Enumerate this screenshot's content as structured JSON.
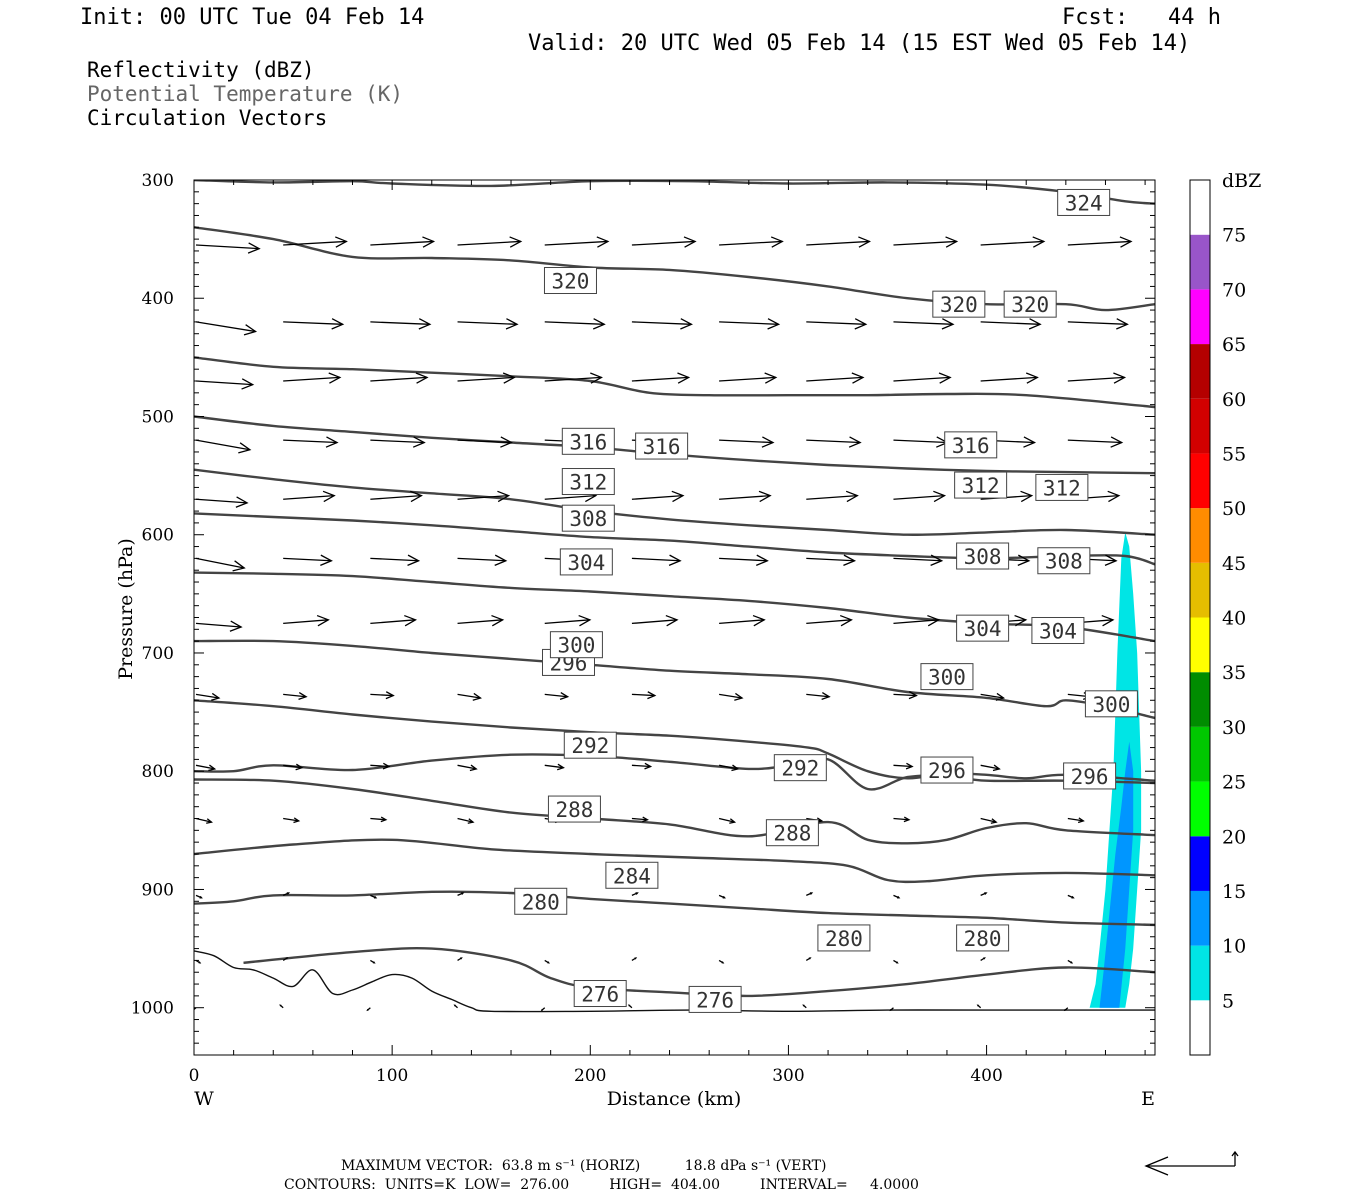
{
  "header": {
    "init": "Init: 00 UTC Tue 04 Feb 14",
    "fcst": "Fcst:   44 h",
    "valid": "Valid: 20 UTC Wed 05 Feb 14 (15 EST Wed 05 Feb 14)"
  },
  "legend": {
    "items": [
      {
        "label": "Reflectivity (dBZ)",
        "color": "#000000"
      },
      {
        "label": "Potential Temperature (K)",
        "color": "#666666"
      },
      {
        "label": "Circulation Vectors",
        "color": "#000000"
      }
    ]
  },
  "footer": {
    "max_vector": "MAXIMUM VECTOR:  63.8 m s⁻¹ (HORIZ)          18.8 dPa s⁻¹ (VERT)",
    "contours": "CONTOURS:  UNITS=K  LOW=  276.00         HIGH=  404.00         INTERVAL=     4.0000"
  },
  "chart_data": {
    "type": "cross-section",
    "xlabel": "Distance (km)",
    "ylabel": "Pressure (hPa)",
    "xlim": [
      0,
      485
    ],
    "ylim": [
      1040,
      300
    ],
    "x_ticks": [
      0,
      100,
      200,
      300,
      400
    ],
    "y_ticks": [
      300,
      400,
      500,
      600,
      700,
      800,
      900,
      1000
    ],
    "x_end_labels": {
      "left": "W",
      "right": "E"
    },
    "colorbar": {
      "title": "dBZ",
      "levels": [
        5,
        10,
        15,
        20,
        25,
        30,
        35,
        40,
        45,
        50,
        55,
        60,
        65,
        70,
        75
      ],
      "colors": [
        "#ffffff",
        "#00e5e5",
        "#0096ff",
        "#0000ff",
        "#00ff00",
        "#00c800",
        "#008c00",
        "#ffff00",
        "#e5be00",
        "#ff8c00",
        "#ff0000",
        "#d20000",
        "#b40000",
        "#ff00ff",
        "#9955c9",
        "#ffffff"
      ]
    },
    "theta_contours": [
      {
        "value": 276,
        "points": [
          [
            0,
            952
          ],
          [
            10,
            956
          ],
          [
            20,
            966
          ],
          [
            30,
            968
          ],
          [
            40,
            975
          ],
          [
            50,
            982
          ],
          [
            60,
            968
          ],
          [
            70,
            988
          ],
          [
            80,
            985
          ],
          [
            90,
            978
          ],
          [
            100,
            972
          ],
          [
            110,
            975
          ],
          [
            120,
            986
          ],
          [
            130,
            993
          ],
          [
            140,
            1000
          ],
          [
            150,
            1003
          ],
          [
            200,
            1003
          ],
          [
            250,
            1002
          ],
          [
            300,
            1003
          ],
          [
            350,
            1002
          ],
          [
            400,
            1002
          ],
          [
            485,
            1002
          ]
        ],
        "labels": [
          [
            205,
            988
          ],
          [
            263,
            993
          ]
        ]
      },
      {
        "value": 280,
        "points": [
          [
            0,
            912
          ],
          [
            20,
            910
          ],
          [
            40,
            905
          ],
          [
            80,
            905
          ],
          [
            120,
            902
          ],
          [
            160,
            903
          ],
          [
            200,
            908
          ],
          [
            240,
            912
          ],
          [
            280,
            916
          ],
          [
            320,
            920
          ],
          [
            360,
            922
          ],
          [
            400,
            924
          ],
          [
            440,
            928
          ],
          [
            485,
            930
          ]
        ],
        "labels": [
          [
            175,
            910
          ],
          [
            328,
            941
          ],
          [
            398,
            941
          ]
        ]
      },
      {
        "value": 280,
        "points": [
          [
            25,
            962
          ],
          [
            80,
            953
          ],
          [
            120,
            950
          ],
          [
            160,
            960
          ],
          [
            180,
            975
          ],
          [
            200,
            983
          ],
          [
            240,
            987
          ],
          [
            280,
            990
          ],
          [
            320,
            986
          ],
          [
            360,
            980
          ],
          [
            400,
            972
          ],
          [
            440,
            966
          ],
          [
            485,
            970
          ]
        ],
        "labels": []
      },
      {
        "value": 284,
        "points": [
          [
            0,
            870
          ],
          [
            50,
            862
          ],
          [
            100,
            858
          ],
          [
            150,
            866
          ],
          [
            200,
            870
          ],
          [
            250,
            873
          ],
          [
            300,
            876
          ],
          [
            330,
            880
          ],
          [
            350,
            892
          ],
          [
            370,
            893
          ],
          [
            400,
            888
          ],
          [
            440,
            886
          ],
          [
            485,
            888
          ]
        ],
        "labels": [
          [
            221,
            888
          ]
        ]
      },
      {
        "value": 288,
        "points": [
          [
            0,
            807
          ],
          [
            40,
            808
          ],
          [
            80,
            815
          ],
          [
            120,
            825
          ],
          [
            160,
            835
          ],
          [
            200,
            840
          ],
          [
            240,
            845
          ],
          [
            280,
            855
          ],
          [
            320,
            843
          ],
          [
            340,
            858
          ],
          [
            360,
            861
          ],
          [
            380,
            858
          ],
          [
            400,
            848
          ],
          [
            420,
            844
          ],
          [
            440,
            850
          ],
          [
            485,
            854
          ]
        ],
        "labels": [
          [
            192,
            832
          ],
          [
            302,
            852
          ]
        ]
      },
      {
        "value": 292,
        "points": [
          [
            0,
            800
          ],
          [
            20,
            800
          ],
          [
            40,
            795
          ],
          [
            80,
            799
          ],
          [
            120,
            791
          ],
          [
            160,
            786
          ],
          [
            200,
            787
          ],
          [
            240,
            792
          ],
          [
            280,
            798
          ],
          [
            300,
            795
          ],
          [
            320,
            790
          ],
          [
            340,
            815
          ],
          [
            360,
            805
          ],
          [
            380,
            804
          ],
          [
            400,
            808
          ],
          [
            440,
            808
          ],
          [
            485,
            810
          ]
        ],
        "labels": [
          [
            200,
            778
          ],
          [
            306,
            797
          ]
        ]
      },
      {
        "value": 296,
        "points": [
          [
            0,
            740
          ],
          [
            40,
            745
          ],
          [
            80,
            752
          ],
          [
            120,
            758
          ],
          [
            160,
            763
          ],
          [
            200,
            767
          ],
          [
            240,
            770
          ],
          [
            280,
            775
          ],
          [
            310,
            780
          ],
          [
            320,
            785
          ],
          [
            340,
            800
          ],
          [
            360,
            806
          ],
          [
            380,
            802
          ],
          [
            400,
            803
          ],
          [
            420,
            806
          ],
          [
            440,
            803
          ],
          [
            485,
            808
          ]
        ],
        "labels": [
          [
            189,
            708
          ],
          [
            380,
            799
          ],
          [
            452,
            804
          ]
        ]
      },
      {
        "value": 300,
        "points": [
          [
            0,
            690
          ],
          [
            40,
            690
          ],
          [
            80,
            694
          ],
          [
            120,
            700
          ],
          [
            160,
            705
          ],
          [
            200,
            710
          ],
          [
            240,
            715
          ],
          [
            280,
            718
          ],
          [
            320,
            722
          ],
          [
            360,
            733
          ],
          [
            400,
            738
          ],
          [
            430,
            745
          ],
          [
            440,
            740
          ],
          [
            460,
            745
          ],
          [
            485,
            755
          ]
        ],
        "labels": [
          [
            193,
            693
          ],
          [
            380,
            720
          ],
          [
            463,
            743
          ]
        ]
      },
      {
        "value": 304,
        "points": [
          [
            0,
            632
          ],
          [
            40,
            633
          ],
          [
            80,
            635
          ],
          [
            120,
            640
          ],
          [
            160,
            645
          ],
          [
            200,
            648
          ],
          [
            240,
            652
          ],
          [
            280,
            656
          ],
          [
            320,
            662
          ],
          [
            360,
            670
          ],
          [
            400,
            675
          ],
          [
            440,
            678
          ],
          [
            485,
            690
          ]
        ],
        "labels": [
          [
            198,
            623
          ],
          [
            398,
            679
          ],
          [
            436,
            681
          ]
        ]
      },
      {
        "value": 308,
        "points": [
          [
            0,
            582
          ],
          [
            40,
            585
          ],
          [
            80,
            588
          ],
          [
            120,
            592
          ],
          [
            160,
            597
          ],
          [
            200,
            602
          ],
          [
            240,
            605
          ],
          [
            280,
            610
          ],
          [
            320,
            615
          ],
          [
            360,
            618
          ],
          [
            400,
            620
          ],
          [
            440,
            618
          ],
          [
            470,
            618
          ],
          [
            485,
            625
          ]
        ],
        "labels": [
          [
            199,
            586
          ],
          [
            398,
            618
          ],
          [
            439,
            622
          ]
        ]
      },
      {
        "value": 312,
        "points": [
          [
            0,
            545
          ],
          [
            40,
            553
          ],
          [
            80,
            560
          ],
          [
            120,
            565
          ],
          [
            160,
            570
          ],
          [
            200,
            580
          ],
          [
            240,
            587
          ],
          [
            280,
            592
          ],
          [
            320,
            596
          ],
          [
            360,
            600
          ],
          [
            400,
            598
          ],
          [
            440,
            596
          ],
          [
            485,
            600
          ]
        ],
        "labels": [
          [
            199,
            555
          ],
          [
            397,
            558
          ],
          [
            438,
            560
          ]
        ]
      },
      {
        "value": 316,
        "points": [
          [
            0,
            500
          ],
          [
            40,
            508
          ],
          [
            80,
            513
          ],
          [
            120,
            518
          ],
          [
            160,
            522
          ],
          [
            200,
            526
          ],
          [
            240,
            532
          ],
          [
            280,
            537
          ],
          [
            320,
            541
          ],
          [
            360,
            544
          ],
          [
            400,
            546
          ],
          [
            440,
            547
          ],
          [
            485,
            548
          ]
        ],
        "labels": [
          [
            199,
            521
          ],
          [
            236,
            525
          ],
          [
            392,
            524
          ]
        ]
      },
      {
        "value": 316,
        "points": [
          [
            0,
            450
          ],
          [
            40,
            458
          ],
          [
            80,
            460
          ],
          [
            120,
            463
          ],
          [
            160,
            466
          ],
          [
            200,
            470
          ],
          [
            230,
            480
          ],
          [
            260,
            482
          ],
          [
            300,
            482
          ],
          [
            340,
            482
          ],
          [
            380,
            481
          ],
          [
            420,
            482
          ],
          [
            485,
            492
          ]
        ],
        "labels": []
      },
      {
        "value": 320,
        "points": [
          [
            0,
            340
          ],
          [
            40,
            350
          ],
          [
            80,
            365
          ],
          [
            120,
            366
          ],
          [
            160,
            368
          ],
          [
            200,
            374
          ],
          [
            240,
            376
          ],
          [
            280,
            382
          ],
          [
            320,
            390
          ],
          [
            360,
            400
          ],
          [
            400,
            405
          ],
          [
            440,
            405
          ],
          [
            460,
            410
          ],
          [
            485,
            405
          ]
        ],
        "labels": [
          [
            190,
            385
          ],
          [
            386,
            405
          ],
          [
            422,
            405
          ]
        ]
      },
      {
        "value": 324,
        "points": [
          [
            0,
            300
          ],
          [
            40,
            302
          ],
          [
            80,
            301
          ],
          [
            100,
            303
          ],
          [
            150,
            305
          ],
          [
            200,
            301
          ],
          [
            250,
            301
          ],
          [
            300,
            303
          ],
          [
            350,
            302
          ],
          [
            400,
            304
          ],
          [
            440,
            310
          ],
          [
            470,
            318
          ],
          [
            485,
            320
          ]
        ],
        "labels": [
          [
            449,
            319
          ]
        ]
      }
    ],
    "reflectivity_regions": [
      {
        "level": 5,
        "points": [
          [
            452,
            1000
          ],
          [
            455,
            980
          ],
          [
            457,
            950
          ],
          [
            460,
            900
          ],
          [
            462,
            850
          ],
          [
            464,
            800
          ],
          [
            465,
            750
          ],
          [
            466,
            700
          ],
          [
            467,
            660
          ],
          [
            468,
            620
          ],
          [
            470,
            598
          ],
          [
            472,
            610
          ],
          [
            474,
            650
          ],
          [
            476,
            700
          ],
          [
            477,
            750
          ],
          [
            478,
            800
          ],
          [
            478,
            850
          ],
          [
            476,
            900
          ],
          [
            474,
            950
          ],
          [
            472,
            980
          ],
          [
            470,
            1000
          ]
        ]
      },
      {
        "level": 10,
        "points": [
          [
            457,
            1000
          ],
          [
            459,
            970
          ],
          [
            462,
            920
          ],
          [
            465,
            870
          ],
          [
            468,
            830
          ],
          [
            470,
            800
          ],
          [
            472,
            775
          ],
          [
            474,
            800
          ],
          [
            474,
            850
          ],
          [
            472,
            900
          ],
          [
            470,
            950
          ],
          [
            467,
            1000
          ]
        ]
      }
    ],
    "vectors": [
      {
        "u": 63.8,
        "v": 0
      },
      {
        "u": 45,
        "v": 5
      },
      {
        "u": 20,
        "v": -6
      }
    ]
  }
}
